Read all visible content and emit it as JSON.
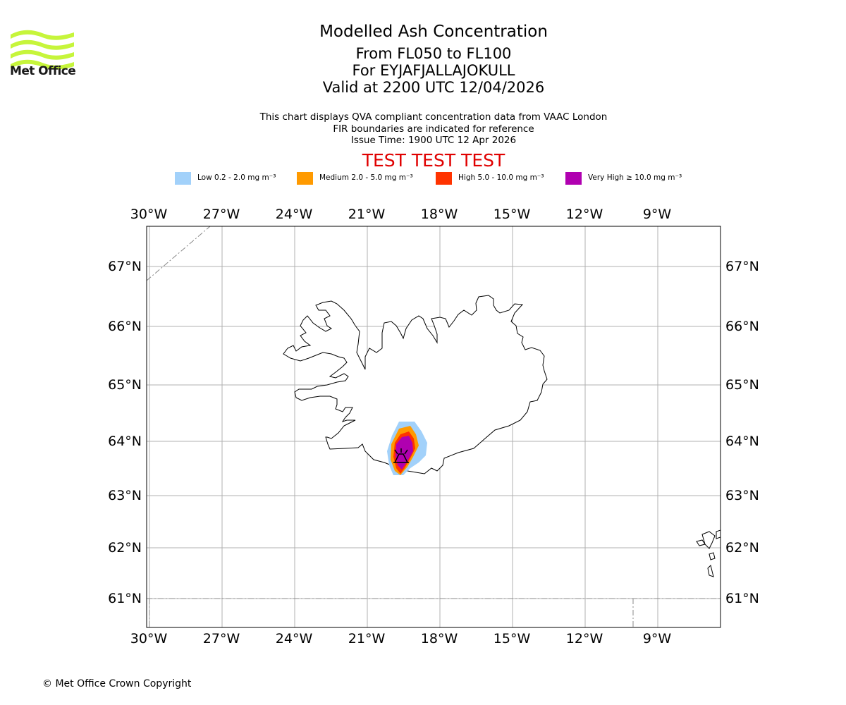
{
  "header": {
    "title": "Modelled Ash Concentration",
    "subtitle_lines": [
      "From FL050 to FL100",
      "For EYJAFJALLAJOKULL",
      "Valid at 2200 UTC 12/04/2026"
    ],
    "notes": [
      "This chart displays QVA compliant concentration data from VAAC London",
      "FIR boundaries are indicated for reference",
      "Issue Time: 1900 UTC 12 Apr 2026"
    ],
    "test_banner": "TEST TEST TEST",
    "logo_text": "Met Office"
  },
  "legend": [
    {
      "label": "Low 0.2 - 2.0 mg m⁻³",
      "color": "#a2d1fa"
    },
    {
      "label": "Medium 2.0 - 5.0 mg m⁻³",
      "color": "#ff9a00"
    },
    {
      "label": "High 5.0 - 10.0 mg m⁻³",
      "color": "#ff3300"
    },
    {
      "label": "Very High ≥ 10.0 mg m⁻³",
      "color": "#b000b0"
    }
  ],
  "map": {
    "projection": "Lambert-like conic",
    "lon_labels": [
      "30°W",
      "27°W",
      "24°W",
      "21°W",
      "18°W",
      "15°W",
      "12°W",
      "9°W"
    ],
    "lat_labels": [
      "67°N",
      "66°N",
      "65°N",
      "64°N",
      "63°N",
      "62°N",
      "61°N"
    ],
    "volcano": "EYJAFJALLAJOKULL",
    "grid": true,
    "colors": {
      "coast": "#000000",
      "grid": "#b0b0b0",
      "fir": "#888888"
    }
  },
  "footer": {
    "copyright": "© Met Office Crown Copyright"
  }
}
